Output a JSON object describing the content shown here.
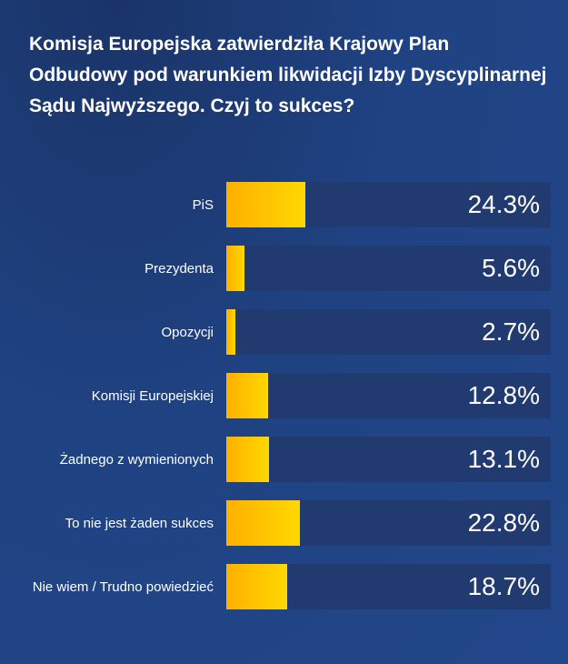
{
  "chart_data": {
    "type": "bar",
    "orientation": "horizontal",
    "title": "Komisja Europejska zatwierdziła Krajowy Plan Odbudowy pod warunkiem likwidacji Izby Dyscyplinarnej Sądu Najwyższego. Czyj to sukces?",
    "categories": [
      "PiS",
      "Prezydenta",
      "Opozycji",
      "Komisji Europejskiej",
      "Żadnego z wymienionych",
      "To nie jest żaden sukces",
      "Nie wiem / Trudno powiedzieć"
    ],
    "values": [
      24.3,
      5.6,
      2.7,
      12.8,
      13.1,
      22.8,
      18.7
    ],
    "value_labels": [
      "24.3%",
      "5.6%",
      "2.7%",
      "12.8%",
      "13.1%",
      "22.8%",
      "18.7%"
    ],
    "xlim": [
      0,
      100
    ],
    "unit": "%",
    "colors": {
      "fill_start": "#ffb000",
      "fill_end": "#ffd800",
      "track": "#213a70"
    }
  }
}
